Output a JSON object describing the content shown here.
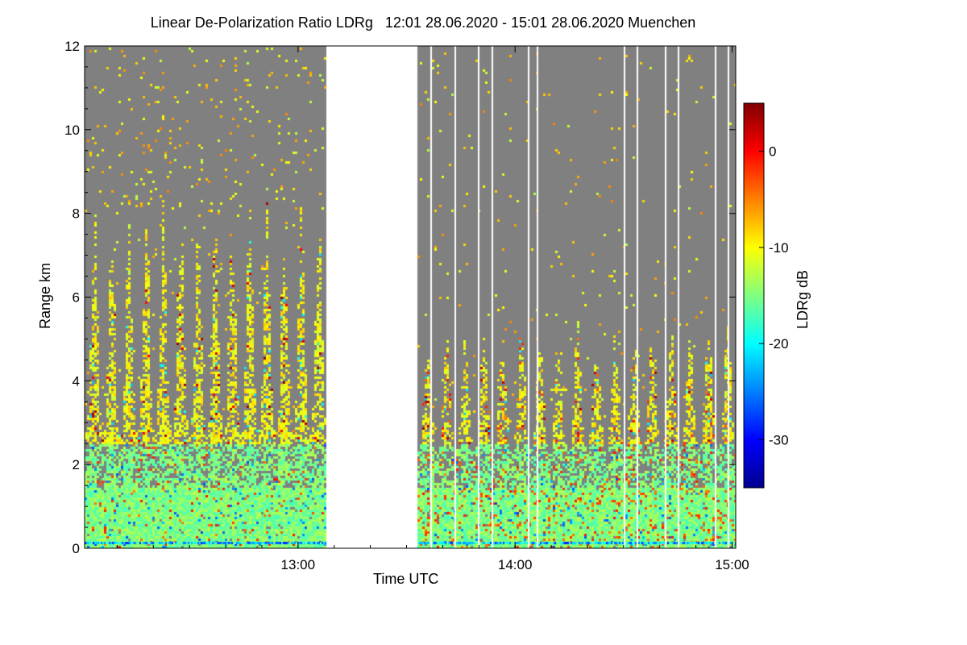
{
  "chart_data": {
    "type": "heatmap",
    "title": "Linear De-Polarization Ratio LDRg   12:01 28.06.2020 - 15:01 28.06.2020 Muenchen",
    "xlabel": "Time UTC",
    "ylabel": "Range km",
    "colorbar_label": "LDRg dB",
    "x_range_hours": [
      12.0167,
      15.0167
    ],
    "y_range_km": [
      0,
      12
    ],
    "x_ticks": [
      {
        "value": 13.0,
        "label": "13:00"
      },
      {
        "value": 14.0,
        "label": "14:00"
      },
      {
        "value": 15.0,
        "label": "15:00"
      }
    ],
    "y_ticks": [
      0,
      2,
      4,
      6,
      8,
      10,
      12
    ],
    "colorbar_range_db": [
      -35,
      5
    ],
    "colorbar_ticks": [
      0,
      -10,
      -20,
      -30
    ],
    "data_gaps_hours": [
      [
        13.13,
        13.55
      ]
    ],
    "no_signal_color": "#808080",
    "signal_top_km": {
      "first_segment": {
        "start": 12.0167,
        "end": 13.13,
        "base_top_km": 2.8,
        "plume_top_km": 8.5
      },
      "second_segment": {
        "start": 13.55,
        "end": 15.0167,
        "base_top_km": 2.4,
        "plume_top_km": 5.5
      }
    },
    "colormap": [
      "#00008f",
      "#0000ff",
      "#0080ff",
      "#00ffff",
      "#80ff80",
      "#ffff00",
      "#ff8000",
      "#ff0000",
      "#800000"
    ]
  }
}
